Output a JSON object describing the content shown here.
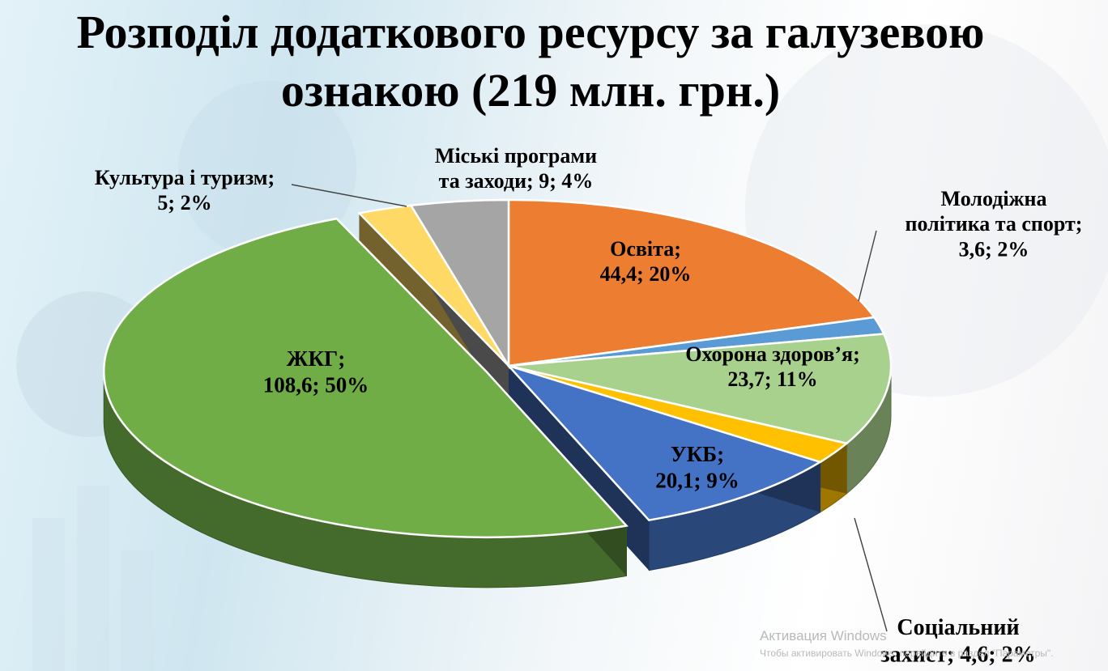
{
  "title": {
    "line1": "Розподіл додаткового ресурсу за галузевою",
    "line2": "ознакою (219 млн. грн.)"
  },
  "colors": {
    "background": "#e3f2f8",
    "title": "#000000"
  },
  "chart_data": {
    "type": "pie",
    "style": "3d-exploded",
    "label_format": "category; value; percent",
    "slices": [
      {
        "name": "Освіта",
        "value": 44.4,
        "percent": "20%",
        "color": "#ED7D31",
        "label_lines": [
          "Освіта;",
          "44,4; 20%"
        ]
      },
      {
        "name": "Молодіжна політика та спорт",
        "value": 3.6,
        "percent": "2%",
        "color": "#5B9BD5",
        "label_lines": [
          "Молодіжна",
          "політика та спорт;",
          "3,6; 2%"
        ]
      },
      {
        "name": "Охорона здоров’я",
        "value": 23.7,
        "percent": "11%",
        "color": "#A9D18E",
        "label_lines": [
          "Охорона здоров’я;",
          "23,7; 11%"
        ]
      },
      {
        "name": "Соціальний захист",
        "value": 4.6,
        "percent": "2%",
        "color": "#FFC000",
        "label_lines": [
          "Соціальний",
          "захист; 4,6; 2%"
        ]
      },
      {
        "name": "УКБ",
        "value": 20.1,
        "percent": "9%",
        "color": "#4472C4",
        "label_lines": [
          "УКБ;",
          "20,1; 9%"
        ]
      },
      {
        "name": "ЖКГ",
        "value": 108.6,
        "percent": "50%",
        "color": "#70AD47",
        "label_lines": [
          "ЖКГ;",
          "108,6; 50%"
        ]
      },
      {
        "name": "Культура і туризм",
        "value": 5,
        "percent": "2%",
        "color": "#FFD966",
        "label_lines": [
          "Культура і туризм;",
          "5; 2%"
        ]
      },
      {
        "name": "Міські програми та заходи",
        "value": 9,
        "percent": "4%",
        "color": "#A5A5A5",
        "label_lines": [
          "Міські програми",
          "та заходи; 9; 4%"
        ]
      }
    ]
  },
  "watermark": {
    "line1": "Активация Windows",
    "line2": "Чтобы активировать Windows, перейдите в раздел \"Параметры\"."
  }
}
